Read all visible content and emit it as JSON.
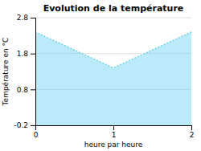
{
  "chart_data": {
    "type": "area",
    "title": "Evolution de la température",
    "x_label": "heure par heure",
    "y_label": "Température en °C",
    "x": [
      0,
      1,
      2
    ],
    "values": [
      2.4,
      1.4,
      2.4
    ],
    "xlim": [
      0,
      2
    ],
    "ylim": [
      -0.2,
      2.8
    ],
    "xticks": [
      0,
      1,
      2
    ],
    "yticks": [
      -0.2,
      0.8,
      1.8,
      2.8
    ],
    "color": "#55ccee",
    "line_style": "dotted",
    "grid": true
  }
}
